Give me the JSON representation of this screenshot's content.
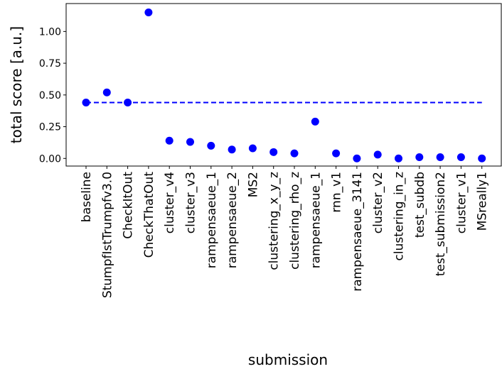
{
  "chart_data": {
    "type": "scatter",
    "xlabel": "submission",
    "ylabel": "total score [a.u.]",
    "ylim": [
      -0.06,
      1.22
    ],
    "yticks": [
      0.0,
      0.25,
      0.5,
      0.75,
      1.0
    ],
    "ytick_labels": [
      "0.00",
      "0.25",
      "0.50",
      "0.75",
      "1.00"
    ],
    "grid": false,
    "categories": [
      "baseline",
      "StumpfIstTrumpfv3.0",
      "CheckItOut",
      "CheckThatOut",
      "cluster_v4",
      "cluster_v3",
      "rampensaeue_1",
      "rampensaeue_2",
      "MS2",
      "clustering_x_y_z",
      "clustering_rho_z",
      "rampensaeue_1",
      "rnn_v1",
      "rampensaeue_3141",
      "cluster_v2",
      "clustering_in_z",
      "test_subdb",
      "test_submission2",
      "cluster_v1",
      "MSreally1"
    ],
    "values": [
      0.44,
      0.52,
      0.44,
      1.15,
      0.14,
      0.13,
      0.1,
      0.07,
      0.08,
      0.05,
      0.04,
      0.29,
      0.04,
      0.0,
      0.03,
      0.0,
      0.01,
      0.01,
      0.01,
      0.0
    ],
    "reference_line": {
      "value": 0.44,
      "style": "dashed"
    },
    "colors": {
      "points": "#0000ff",
      "reference_line": "#0000ff",
      "axes": "#000000"
    }
  }
}
